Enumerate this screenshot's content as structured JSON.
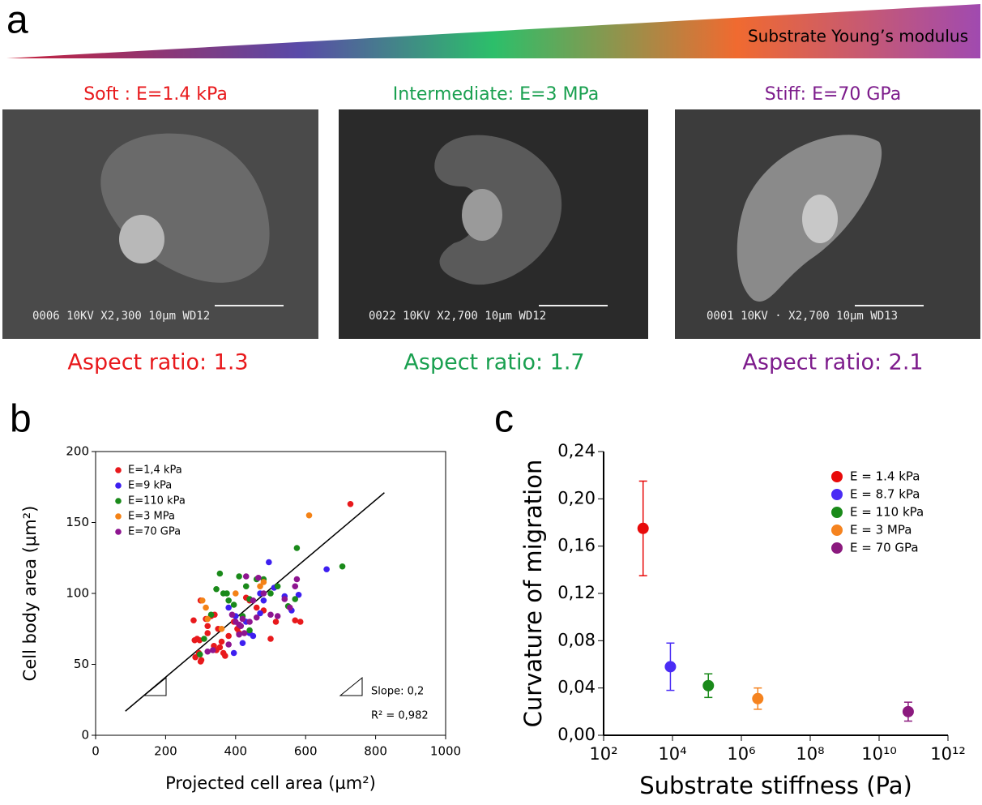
{
  "panel_labels": [
    "a",
    "b",
    "c"
  ],
  "header": {
    "gradient_label": "Substrate Young’s modulus"
  },
  "images": [
    {
      "title": "Soft : E=1.4 kPa",
      "overlay": "0006  10KV  X2,300  10µm WD12",
      "caption": "Aspect ratio: 1.3"
    },
    {
      "title": "Intermediate: E=3 MPa",
      "overlay": "0022  10KV  X2,700  10µm WD12",
      "caption": "Aspect ratio: 1.7"
    },
    {
      "title": "Stiff: E=70 GPa",
      "overlay": "0001  10KV · X2,700  10µm WD13",
      "caption": "Aspect ratio: 2.1"
    }
  ],
  "chart_data": [
    {
      "type": "scatter",
      "x_label": "Projected cell area (µm²)",
      "y_label": "Cell body area (µm²)",
      "xlim": [
        0,
        1000
      ],
      "ylim": [
        0,
        200
      ],
      "xticks": [
        0,
        200,
        400,
        600,
        800,
        1000
      ],
      "yticks": [
        0,
        50,
        100,
        150,
        200
      ],
      "annotations": [
        "Slope: 0,2",
        "R² = 0,982"
      ],
      "fit_line": {
        "x": [
          85,
          825
        ],
        "values": [
          17,
          171
        ]
      },
      "series": [
        {
          "name": "E=1,4 kPa",
          "color": "#e8191c",
          "x": [
            280,
            283,
            290,
            297,
            285,
            295,
            302,
            300,
            315,
            320,
            330,
            338,
            345,
            355,
            360,
            365,
            370,
            380,
            395,
            405,
            410,
            430,
            440,
            460,
            480,
            500,
            515,
            570,
            585,
            728,
            300,
            340,
            320,
            350
          ],
          "values": [
            81,
            67,
            68,
            67,
            55,
            58,
            53,
            52,
            82,
            77,
            84,
            63,
            60,
            62,
            66,
            58,
            56,
            70,
            80,
            75,
            72,
            97,
            95,
            90,
            88,
            68,
            80,
            81,
            80,
            163,
            95,
            85,
            72,
            75
          ]
        },
        {
          "name": "E=9 kPa",
          "color": "#3d1ff0",
          "x": [
            395,
            420,
            440,
            450,
            470,
            480,
            495,
            510,
            540,
            560,
            580,
            660,
            380,
            400,
            430,
            470
          ],
          "values": [
            58,
            65,
            72,
            70,
            86,
            95,
            122,
            104,
            98,
            88,
            99,
            117,
            90,
            84,
            80,
            100
          ]
        },
        {
          "name": "E=110 kPa",
          "color": "#1a8a1a",
          "x": [
            298,
            310,
            330,
            345,
            355,
            365,
            375,
            380,
            395,
            410,
            430,
            440,
            460,
            480,
            500,
            520,
            550,
            570,
            575,
            705,
            440,
            420
          ],
          "values": [
            57,
            68,
            85,
            103,
            114,
            100,
            100,
            95,
            92,
            112,
            105,
            96,
            110,
            110,
            100,
            105,
            91,
            96,
            132,
            119,
            74,
            84
          ]
        },
        {
          "name": "E=3 MPa",
          "color": "#f48216",
          "x": [
            305,
            315,
            320,
            360,
            400,
            470,
            480,
            610
          ],
          "values": [
            95,
            90,
            82,
            75,
            100,
            105,
            108,
            155
          ]
        },
        {
          "name": "E=70 GPa",
          "color": "#8e1590",
          "x": [
            320,
            335,
            380,
            390,
            400,
            410,
            415,
            420,
            430,
            440,
            450,
            460,
            465,
            480,
            500,
            520,
            540,
            555,
            570,
            575,
            410,
            425
          ],
          "values": [
            59,
            60,
            64,
            85,
            80,
            78,
            77,
            82,
            112,
            80,
            95,
            83,
            111,
            100,
            85,
            84,
            96,
            90,
            105,
            110,
            71,
            72
          ]
        }
      ]
    },
    {
      "type": "errorbar",
      "x_label": "Substrate stiffness (Pa)",
      "y_label": "Curvature of migration",
      "log_x": true,
      "xlim": [
        100,
        1000000000000
      ],
      "ylim": [
        0,
        0.24
      ],
      "xticks": [
        {
          "value": 100,
          "label": "10²"
        },
        {
          "value": 10000,
          "label": "10⁴"
        },
        {
          "value": 1000000,
          "label": "10⁶"
        },
        {
          "value": 100000000,
          "label": "10⁸"
        },
        {
          "value": 10000000000,
          "label": "10¹⁰"
        },
        {
          "value": 1000000000000,
          "label": "10¹²"
        }
      ],
      "yticks": [
        {
          "value": 0,
          "label": "0,00"
        },
        {
          "value": 0.04,
          "label": "0,04"
        },
        {
          "value": 0.08,
          "label": "0,08"
        },
        {
          "value": 0.12,
          "label": "0,12"
        },
        {
          "value": 0.16,
          "label": "0,16"
        },
        {
          "value": 0.2,
          "label": "0,20"
        },
        {
          "value": 0.24,
          "label": "0,24"
        }
      ],
      "series": [
        {
          "name": "E = 1.4 kPa",
          "color": "#e80a0a",
          "x": [
            1400
          ],
          "values": [
            0.175
          ],
          "errors": [
            0.04
          ]
        },
        {
          "name": "E = 8.7 kPa",
          "color": "#4a2cf5",
          "x": [
            8700
          ],
          "values": [
            0.058
          ],
          "errors": [
            0.02
          ]
        },
        {
          "name": "E = 110 kPa",
          "color": "#1a8a1a",
          "x": [
            110000
          ],
          "values": [
            0.042
          ],
          "errors": [
            0.01
          ]
        },
        {
          "name": "E = 3 MPa",
          "color": "#f5831f",
          "x": [
            3000000
          ],
          "values": [
            0.031
          ],
          "errors": [
            0.009
          ]
        },
        {
          "name": "E = 70 GPa",
          "color": "#8b1a7e",
          "x": [
            70000000000
          ],
          "values": [
            0.02
          ],
          "errors": [
            0.008
          ]
        }
      ]
    }
  ]
}
